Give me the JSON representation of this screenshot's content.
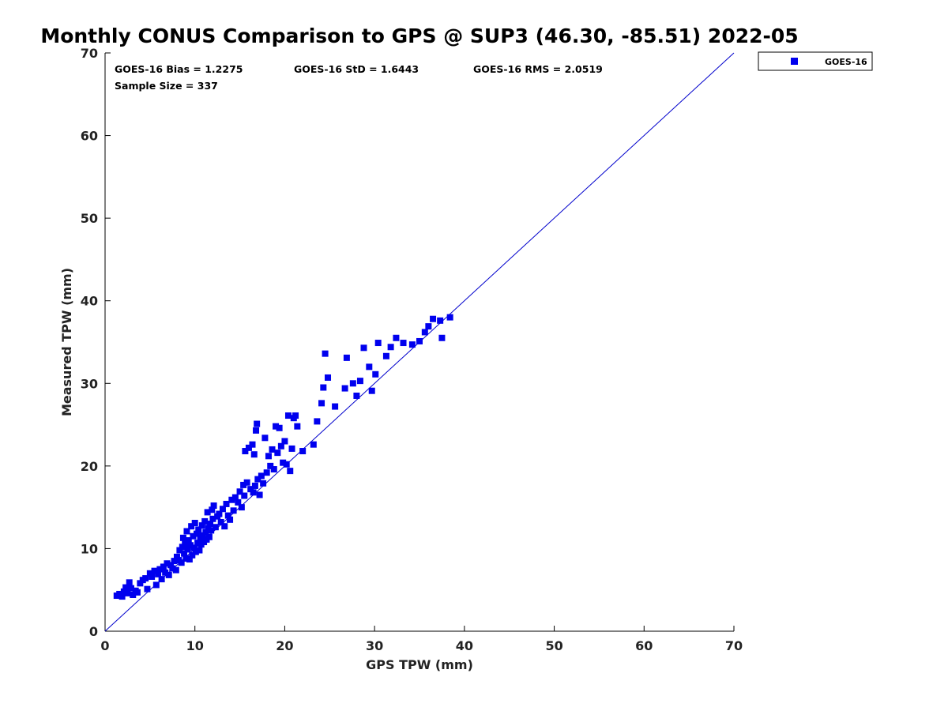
{
  "chart_data": {
    "type": "scatter",
    "title": "Monthly CONUS Comparison to GPS @ SUP3 (46.30, -85.51) 2022-05",
    "xlabel": "GPS TPW (mm)",
    "ylabel": "Measured TPW (mm)",
    "xlim": [
      0,
      70
    ],
    "ylim": [
      0,
      70
    ],
    "xticks": [
      0,
      10,
      20,
      30,
      40,
      50,
      60,
      70
    ],
    "yticks": [
      0,
      10,
      20,
      30,
      40,
      50,
      60,
      70
    ],
    "grid": false,
    "legend_position": "outside-top-right",
    "stats": {
      "bias": "GOES-16 Bias = 1.2275",
      "std": "GOES-16 StD = 1.6443",
      "rms": "GOES-16 RMS = 2.0519",
      "sample_size": "Sample Size = 337"
    },
    "reference_line": {
      "type": "one-to-one",
      "from": [
        0,
        0
      ],
      "to": [
        70,
        70
      ],
      "color": "#0000cc"
    },
    "series": [
      {
        "name": "GOES-16",
        "color": "#0000ee",
        "marker": "square",
        "points": [
          [
            1.3,
            4.3
          ],
          [
            1.6,
            4.5
          ],
          [
            1.9,
            4.2
          ],
          [
            2.1,
            4.8
          ],
          [
            2.3,
            5.3
          ],
          [
            2.5,
            4.6
          ],
          [
            2.7,
            5.9
          ],
          [
            2.9,
            5.2
          ],
          [
            3.1,
            4.4
          ],
          [
            3.4,
            4.9
          ],
          [
            3.6,
            4.7
          ],
          [
            3.9,
            5.8
          ],
          [
            4.2,
            6.2
          ],
          [
            4.5,
            6.4
          ],
          [
            4.7,
            5.1
          ],
          [
            5.0,
            7.0
          ],
          [
            5.2,
            6.6
          ],
          [
            5.5,
            7.3
          ],
          [
            5.7,
            5.6
          ],
          [
            5.9,
            6.9
          ],
          [
            6.1,
            7.5
          ],
          [
            6.3,
            6.3
          ],
          [
            6.5,
            7.8
          ],
          [
            6.7,
            7.1
          ],
          [
            6.9,
            8.2
          ],
          [
            7.1,
            6.8
          ],
          [
            7.3,
            8.0
          ],
          [
            7.5,
            7.6
          ],
          [
            7.7,
            8.5
          ],
          [
            7.9,
            7.4
          ],
          [
            8.0,
            9.0
          ],
          [
            8.2,
            8.6
          ],
          [
            8.3,
            9.8
          ],
          [
            8.5,
            8.3
          ],
          [
            8.6,
            10.2
          ],
          [
            8.7,
            11.3
          ],
          [
            8.8,
            9.4
          ],
          [
            8.9,
            10.6
          ],
          [
            9.0,
            8.8
          ],
          [
            9.1,
            12.1
          ],
          [
            9.2,
            9.9
          ],
          [
            9.3,
            11.0
          ],
          [
            9.4,
            8.7
          ],
          [
            9.5,
            10.4
          ],
          [
            9.6,
            12.7
          ],
          [
            9.7,
            9.2
          ],
          [
            9.8,
            11.5
          ],
          [
            9.9,
            10.1
          ],
          [
            10.0,
            13.1
          ],
          [
            10.1,
            9.6
          ],
          [
            10.2,
            11.8
          ],
          [
            10.3,
            10.7
          ],
          [
            10.4,
            12.3
          ],
          [
            10.5,
            9.8
          ],
          [
            10.6,
            11.2
          ],
          [
            10.7,
            10.5
          ],
          [
            10.8,
            12.8
          ],
          [
            10.9,
            11.6
          ],
          [
            11.0,
            10.8
          ],
          [
            11.1,
            13.3
          ],
          [
            11.2,
            12.0
          ],
          [
            11.3,
            11.1
          ],
          [
            11.4,
            14.4
          ],
          [
            11.5,
            12.5
          ],
          [
            11.6,
            11.4
          ],
          [
            11.7,
            13.0
          ],
          [
            11.8,
            12.2
          ],
          [
            11.9,
            14.7
          ],
          [
            12.0,
            13.6
          ],
          [
            12.1,
            15.2
          ],
          [
            12.3,
            12.6
          ],
          [
            12.5,
            13.9
          ],
          [
            12.7,
            14.2
          ],
          [
            12.9,
            13.2
          ],
          [
            13.1,
            14.8
          ],
          [
            13.3,
            12.7
          ],
          [
            13.5,
            15.4
          ],
          [
            13.7,
            14.0
          ],
          [
            13.9,
            13.5
          ],
          [
            14.1,
            15.9
          ],
          [
            14.3,
            14.6
          ],
          [
            14.5,
            16.2
          ],
          [
            14.8,
            15.6
          ],
          [
            15.0,
            16.9
          ],
          [
            15.2,
            15.0
          ],
          [
            15.4,
            17.7
          ],
          [
            15.5,
            16.4
          ],
          [
            15.6,
            21.8
          ],
          [
            15.8,
            18.0
          ],
          [
            16.0,
            22.2
          ],
          [
            16.2,
            17.2
          ],
          [
            16.4,
            22.6
          ],
          [
            16.5,
            16.8
          ],
          [
            16.6,
            21.4
          ],
          [
            16.7,
            17.6
          ],
          [
            16.8,
            24.3
          ],
          [
            16.9,
            25.1
          ],
          [
            17.0,
            18.4
          ],
          [
            17.2,
            16.5
          ],
          [
            17.4,
            18.8
          ],
          [
            17.6,
            17.9
          ],
          [
            17.8,
            23.4
          ],
          [
            18.0,
            19.2
          ],
          [
            18.2,
            21.2
          ],
          [
            18.4,
            20.0
          ],
          [
            18.6,
            22.0
          ],
          [
            18.8,
            19.6
          ],
          [
            19.0,
            24.8
          ],
          [
            19.2,
            21.6
          ],
          [
            19.4,
            24.6
          ],
          [
            19.6,
            22.4
          ],
          [
            19.8,
            20.4
          ],
          [
            20.0,
            23.0
          ],
          [
            20.2,
            20.2
          ],
          [
            20.4,
            26.1
          ],
          [
            20.6,
            19.4
          ],
          [
            20.8,
            22.1
          ],
          [
            21.0,
            25.8
          ],
          [
            21.2,
            26.1
          ],
          [
            21.4,
            24.8
          ],
          [
            22.0,
            21.8
          ],
          [
            23.2,
            22.6
          ],
          [
            23.6,
            25.4
          ],
          [
            24.1,
            27.6
          ],
          [
            24.3,
            29.5
          ],
          [
            24.5,
            33.6
          ],
          [
            24.8,
            30.7
          ],
          [
            25.6,
            27.2
          ],
          [
            26.7,
            29.4
          ],
          [
            26.9,
            33.1
          ],
          [
            27.6,
            30.0
          ],
          [
            28.0,
            28.5
          ],
          [
            28.4,
            30.3
          ],
          [
            28.8,
            34.3
          ],
          [
            29.4,
            32.0
          ],
          [
            29.7,
            29.1
          ],
          [
            30.1,
            31.1
          ],
          [
            30.4,
            34.9
          ],
          [
            31.3,
            33.3
          ],
          [
            31.8,
            34.4
          ],
          [
            32.4,
            35.5
          ],
          [
            33.2,
            34.9
          ],
          [
            34.2,
            34.7
          ],
          [
            35.0,
            35.1
          ],
          [
            35.6,
            36.2
          ],
          [
            36.0,
            36.9
          ],
          [
            36.5,
            37.8
          ],
          [
            37.3,
            37.6
          ],
          [
            37.5,
            35.5
          ],
          [
            38.4,
            38.0
          ]
        ]
      }
    ]
  }
}
